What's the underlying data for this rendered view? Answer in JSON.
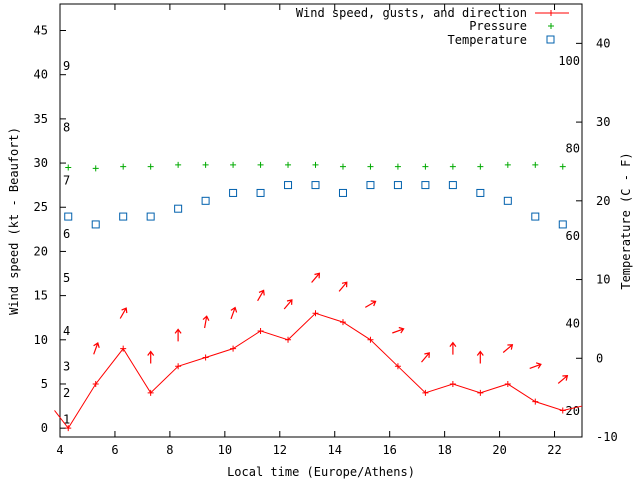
{
  "chart_data": {
    "type": "line",
    "title": "",
    "xlabel": "Local time (Europe/Athens)",
    "ylabel": "Wind speed (kt - Beaufort)",
    "y2label": "Temperature (C - F)",
    "xlim": [
      4,
      23
    ],
    "ylim": [
      -1,
      48
    ],
    "y2lim": [
      -10,
      45
    ],
    "x_ticks": [
      "4",
      "6",
      "8",
      "10",
      "12",
      "14",
      "16",
      "18",
      "20",
      "22"
    ],
    "y_ticks": [
      "0",
      "5",
      "10",
      "15",
      "20",
      "25",
      "30",
      "35",
      "40",
      "45"
    ],
    "y2_ticks": [
      "-10",
      "0",
      "10",
      "20",
      "30",
      "40"
    ],
    "beaufort_labels": [
      "1",
      "2",
      "3",
      "4",
      "5",
      "6",
      "7",
      "8",
      "9"
    ],
    "fahrenheit_labels": [
      "20",
      "40",
      "60",
      "80",
      "100"
    ],
    "legend": [
      "Wind speed, gusts, and direction",
      "Pressure",
      "Temperature"
    ],
    "colors": {
      "wind": "#ff0000",
      "pressure": "#00aa00",
      "temperature": "#0060ad",
      "axis": "#000000"
    },
    "series": [
      {
        "name": "Wind speed",
        "x": [
          3.8,
          4.3,
          5.3,
          6.3,
          7.3,
          8.3,
          9.3,
          10.3,
          11.3,
          12.3,
          13.3,
          14.3,
          15.3,
          16.3,
          17.3,
          18.3,
          19.3,
          20.3,
          21.3,
          22.3,
          23.0
        ],
        "values": [
          2,
          0,
          5,
          9,
          4,
          7,
          8,
          9,
          11,
          10,
          13,
          12,
          10,
          7,
          4,
          5,
          4,
          5,
          3,
          2,
          2.5
        ]
      },
      {
        "name": "Wind direction (arrow, degrees)",
        "x": [
          5.3,
          6.3,
          7.3,
          8.3,
          9.3,
          10.3,
          11.3,
          12.3,
          13.3,
          14.3,
          15.3,
          16.3,
          17.3,
          18.3,
          19.3,
          20.3,
          21.3,
          22.3
        ],
        "y": [
          9,
          13,
          8,
          10.5,
          12,
          13,
          15,
          14,
          17,
          16,
          14,
          11,
          8,
          9,
          8,
          9,
          7,
          5.5
        ],
        "values": [
          200,
          210,
          180,
          180,
          190,
          200,
          210,
          220,
          220,
          220,
          240,
          250,
          220,
          180,
          180,
          230,
          250,
          230
        ]
      },
      {
        "name": "Pressure",
        "x": [
          4.3,
          5.3,
          6.3,
          7.3,
          8.3,
          9.3,
          10.3,
          11.3,
          12.3,
          13.3,
          14.3,
          15.3,
          16.3,
          17.3,
          18.3,
          19.3,
          20.3,
          21.3,
          22.3
        ],
        "values": [
          29.5,
          29.4,
          29.6,
          29.6,
          29.8,
          29.8,
          29.8,
          29.8,
          29.8,
          29.8,
          29.6,
          29.6,
          29.6,
          29.6,
          29.6,
          29.6,
          29.8,
          29.8,
          29.6
        ]
      },
      {
        "name": "Temperature",
        "x": [
          4.3,
          5.3,
          6.3,
          7.3,
          8.3,
          9.3,
          10.3,
          11.3,
          12.3,
          13.3,
          14.3,
          15.3,
          16.3,
          17.3,
          18.3,
          19.3,
          20.3,
          21.3,
          22.3
        ],
        "values": [
          18,
          17,
          18,
          18,
          19,
          20,
          21,
          21,
          22,
          22,
          21,
          22,
          22,
          22,
          22,
          21,
          20,
          18,
          17
        ]
      }
    ]
  }
}
